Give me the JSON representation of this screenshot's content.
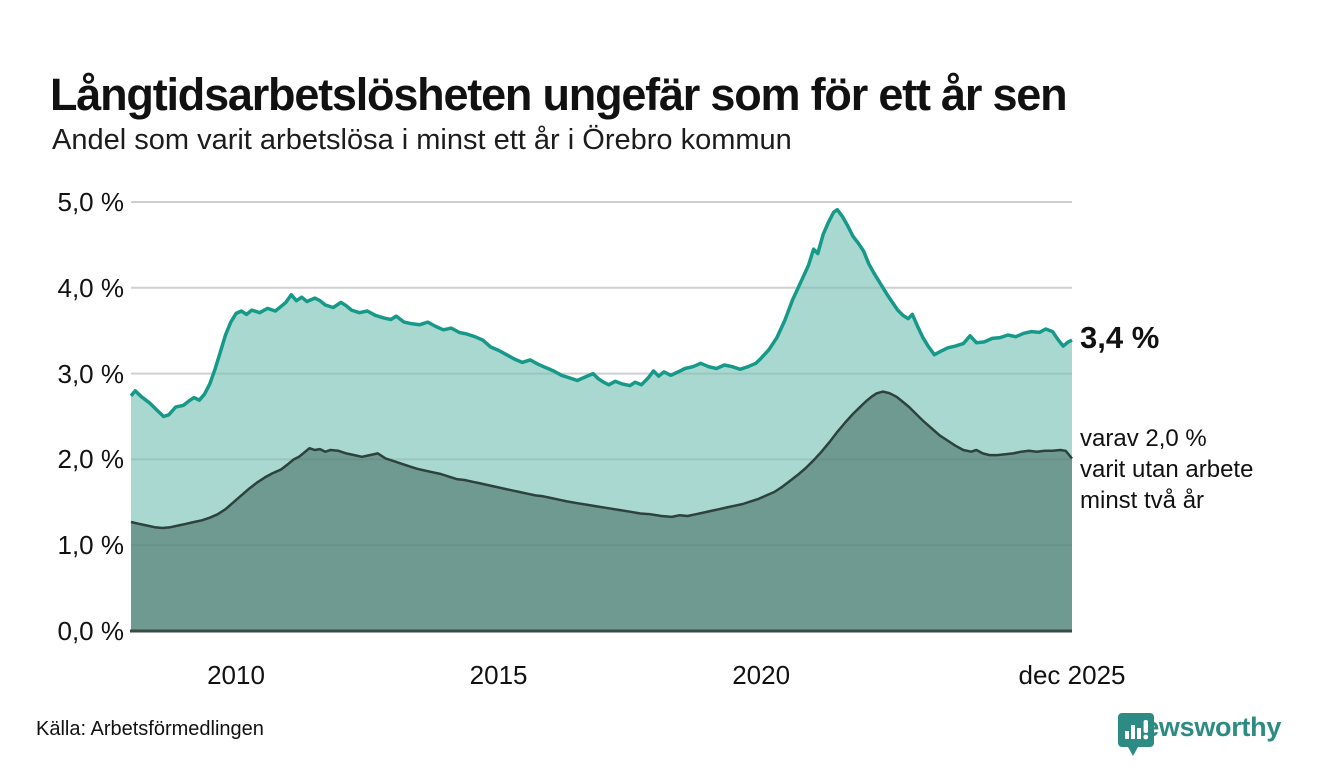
{
  "header": {
    "title": "Långtidsarbetslösheten ungefär som för ett år sen",
    "subtitle": "Andel som varit arbetslösa i minst ett år i Örebro kommun"
  },
  "annotations": {
    "end_value": "3,4 %",
    "secondary_label": "varav 2,0 %\nvarit utan arbete\nminst två år"
  },
  "footer": {
    "source": "Källa: Arbetsförmedlingen",
    "brand": "Newsworthy"
  },
  "colors": {
    "gridline": "#e5e5e8",
    "gridline_overlay": "rgba(70,90,85,0.14)",
    "baseline": "#3a4a45",
    "text": "#111111",
    "brand_teal": "#2e8b84"
  },
  "chart_data": {
    "type": "area",
    "title": "Långtidsarbetslösheten ungefär som för ett år sen",
    "subtitle": "Andel som varit arbetslösa i minst ett år i Örebro kommun",
    "grid": true,
    "legend_position": "right-annotations",
    "x_axis": {
      "lim": [
        2008.0,
        2025.92
      ],
      "ticks": [
        {
          "label": "2010",
          "x": 2010
        },
        {
          "label": "2015",
          "x": 2015
        },
        {
          "label": "2020",
          "x": 2020
        },
        {
          "label": "dec 2025",
          "x": 2025.92
        }
      ]
    },
    "y_axis": {
      "lim": [
        0,
        5
      ],
      "unit": "%",
      "ticks": [
        {
          "label": "0,0 %",
          "v": 0
        },
        {
          "label": "1,0 %",
          "v": 1
        },
        {
          "label": "2,0 %",
          "v": 2
        },
        {
          "label": "3,0 %",
          "v": 3
        },
        {
          "label": "4,0 %",
          "v": 4
        },
        {
          "label": "5,0 %",
          "v": 5
        }
      ]
    },
    "series": [
      {
        "name": "Andel arbetslösa minst ett år",
        "end_label": "3,4 %",
        "end_value": 3.4,
        "color": "#17998a",
        "fill": "#a8d8d0",
        "width": 3.5,
        "points": [
          [
            2008.0,
            2.74
          ],
          [
            2008.08,
            2.8
          ],
          [
            2008.2,
            2.73
          ],
          [
            2008.35,
            2.66
          ],
          [
            2008.5,
            2.57
          ],
          [
            2008.62,
            2.5
          ],
          [
            2008.72,
            2.52
          ],
          [
            2008.85,
            2.61
          ],
          [
            2009.0,
            2.63
          ],
          [
            2009.1,
            2.68
          ],
          [
            2009.2,
            2.72
          ],
          [
            2009.3,
            2.69
          ],
          [
            2009.4,
            2.76
          ],
          [
            2009.5,
            2.88
          ],
          [
            2009.6,
            3.05
          ],
          [
            2009.7,
            3.25
          ],
          [
            2009.8,
            3.45
          ],
          [
            2009.9,
            3.6
          ],
          [
            2010.0,
            3.7
          ],
          [
            2010.1,
            3.73
          ],
          [
            2010.2,
            3.69
          ],
          [
            2010.3,
            3.74
          ],
          [
            2010.45,
            3.71
          ],
          [
            2010.6,
            3.76
          ],
          [
            2010.75,
            3.73
          ],
          [
            2010.85,
            3.78
          ],
          [
            2010.95,
            3.83
          ],
          [
            2011.05,
            3.92
          ],
          [
            2011.15,
            3.85
          ],
          [
            2011.25,
            3.89
          ],
          [
            2011.35,
            3.84
          ],
          [
            2011.5,
            3.88
          ],
          [
            2011.6,
            3.85
          ],
          [
            2011.7,
            3.8
          ],
          [
            2011.85,
            3.77
          ],
          [
            2012.0,
            3.83
          ],
          [
            2012.1,
            3.79
          ],
          [
            2012.2,
            3.74
          ],
          [
            2012.35,
            3.71
          ],
          [
            2012.5,
            3.73
          ],
          [
            2012.65,
            3.68
          ],
          [
            2012.8,
            3.65
          ],
          [
            2012.95,
            3.63
          ],
          [
            2013.05,
            3.67
          ],
          [
            2013.2,
            3.6
          ],
          [
            2013.35,
            3.58
          ],
          [
            2013.5,
            3.57
          ],
          [
            2013.65,
            3.6
          ],
          [
            2013.8,
            3.55
          ],
          [
            2013.95,
            3.51
          ],
          [
            2014.1,
            3.53
          ],
          [
            2014.25,
            3.48
          ],
          [
            2014.4,
            3.46
          ],
          [
            2014.55,
            3.43
          ],
          [
            2014.7,
            3.39
          ],
          [
            2014.85,
            3.31
          ],
          [
            2015.0,
            3.27
          ],
          [
            2015.15,
            3.22
          ],
          [
            2015.3,
            3.17
          ],
          [
            2015.45,
            3.13
          ],
          [
            2015.6,
            3.16
          ],
          [
            2015.75,
            3.11
          ],
          [
            2015.9,
            3.07
          ],
          [
            2016.05,
            3.03
          ],
          [
            2016.2,
            2.98
          ],
          [
            2016.35,
            2.95
          ],
          [
            2016.5,
            2.92
          ],
          [
            2016.65,
            2.96
          ],
          [
            2016.8,
            3.0
          ],
          [
            2016.9,
            2.94
          ],
          [
            2017.0,
            2.9
          ],
          [
            2017.1,
            2.87
          ],
          [
            2017.22,
            2.91
          ],
          [
            2017.35,
            2.88
          ],
          [
            2017.5,
            2.86
          ],
          [
            2017.6,
            2.9
          ],
          [
            2017.72,
            2.87
          ],
          [
            2017.85,
            2.95
          ],
          [
            2017.95,
            3.03
          ],
          [
            2018.05,
            2.97
          ],
          [
            2018.15,
            3.02
          ],
          [
            2018.28,
            2.98
          ],
          [
            2018.42,
            3.02
          ],
          [
            2018.55,
            3.06
          ],
          [
            2018.7,
            3.08
          ],
          [
            2018.85,
            3.12
          ],
          [
            2019.0,
            3.08
          ],
          [
            2019.15,
            3.06
          ],
          [
            2019.3,
            3.1
          ],
          [
            2019.45,
            3.08
          ],
          [
            2019.6,
            3.05
          ],
          [
            2019.75,
            3.08
          ],
          [
            2019.9,
            3.12
          ],
          [
            2020.0,
            3.18
          ],
          [
            2020.15,
            3.28
          ],
          [
            2020.3,
            3.42
          ],
          [
            2020.45,
            3.62
          ],
          [
            2020.6,
            3.86
          ],
          [
            2020.75,
            4.06
          ],
          [
            2020.9,
            4.26
          ],
          [
            2021.0,
            4.45
          ],
          [
            2021.08,
            4.4
          ],
          [
            2021.18,
            4.62
          ],
          [
            2021.28,
            4.76
          ],
          [
            2021.38,
            4.88
          ],
          [
            2021.45,
            4.91
          ],
          [
            2021.55,
            4.83
          ],
          [
            2021.65,
            4.72
          ],
          [
            2021.75,
            4.6
          ],
          [
            2021.85,
            4.52
          ],
          [
            2021.95,
            4.43
          ],
          [
            2022.05,
            4.28
          ],
          [
            2022.15,
            4.17
          ],
          [
            2022.25,
            4.07
          ],
          [
            2022.4,
            3.92
          ],
          [
            2022.5,
            3.83
          ],
          [
            2022.6,
            3.74
          ],
          [
            2022.7,
            3.68
          ],
          [
            2022.8,
            3.64
          ],
          [
            2022.88,
            3.69
          ],
          [
            2022.98,
            3.55
          ],
          [
            2023.08,
            3.42
          ],
          [
            2023.18,
            3.32
          ],
          [
            2023.3,
            3.22
          ],
          [
            2023.42,
            3.26
          ],
          [
            2023.55,
            3.3
          ],
          [
            2023.7,
            3.32
          ],
          [
            2023.85,
            3.35
          ],
          [
            2023.98,
            3.44
          ],
          [
            2024.1,
            3.36
          ],
          [
            2024.25,
            3.37
          ],
          [
            2024.4,
            3.41
          ],
          [
            2024.55,
            3.42
          ],
          [
            2024.7,
            3.45
          ],
          [
            2024.85,
            3.43
          ],
          [
            2025.0,
            3.47
          ],
          [
            2025.15,
            3.49
          ],
          [
            2025.3,
            3.48
          ],
          [
            2025.42,
            3.52
          ],
          [
            2025.55,
            3.49
          ],
          [
            2025.65,
            3.4
          ],
          [
            2025.75,
            3.32
          ],
          [
            2025.85,
            3.37
          ],
          [
            2025.92,
            3.39
          ]
        ]
      },
      {
        "name": "varav utan arbete minst två år",
        "end_label": "varav 2,0 % varit utan arbete minst två år",
        "end_value": 2.0,
        "color": "#2e423d",
        "fill": "#6f9a92",
        "width": 2.5,
        "points": [
          [
            2008.0,
            1.27
          ],
          [
            2008.15,
            1.25
          ],
          [
            2008.3,
            1.23
          ],
          [
            2008.45,
            1.21
          ],
          [
            2008.6,
            1.2
          ],
          [
            2008.75,
            1.21
          ],
          [
            2008.9,
            1.23
          ],
          [
            2009.05,
            1.25
          ],
          [
            2009.2,
            1.27
          ],
          [
            2009.35,
            1.29
          ],
          [
            2009.5,
            1.32
          ],
          [
            2009.65,
            1.36
          ],
          [
            2009.8,
            1.42
          ],
          [
            2009.95,
            1.5
          ],
          [
            2010.1,
            1.58
          ],
          [
            2010.25,
            1.66
          ],
          [
            2010.4,
            1.73
          ],
          [
            2010.55,
            1.79
          ],
          [
            2010.7,
            1.84
          ],
          [
            2010.85,
            1.88
          ],
          [
            2011.0,
            1.95
          ],
          [
            2011.1,
            2.0
          ],
          [
            2011.2,
            2.03
          ],
          [
            2011.3,
            2.08
          ],
          [
            2011.4,
            2.13
          ],
          [
            2011.5,
            2.11
          ],
          [
            2011.6,
            2.12
          ],
          [
            2011.7,
            2.09
          ],
          [
            2011.8,
            2.11
          ],
          [
            2011.95,
            2.1
          ],
          [
            2012.1,
            2.07
          ],
          [
            2012.25,
            2.05
          ],
          [
            2012.4,
            2.03
          ],
          [
            2012.55,
            2.05
          ],
          [
            2012.7,
            2.07
          ],
          [
            2012.85,
            2.01
          ],
          [
            2013.0,
            1.98
          ],
          [
            2013.15,
            1.95
          ],
          [
            2013.3,
            1.92
          ],
          [
            2013.45,
            1.89
          ],
          [
            2013.6,
            1.87
          ],
          [
            2013.75,
            1.85
          ],
          [
            2013.9,
            1.83
          ],
          [
            2014.05,
            1.8
          ],
          [
            2014.2,
            1.77
          ],
          [
            2014.35,
            1.76
          ],
          [
            2014.5,
            1.74
          ],
          [
            2014.65,
            1.72
          ],
          [
            2014.8,
            1.7
          ],
          [
            2014.95,
            1.68
          ],
          [
            2015.1,
            1.66
          ],
          [
            2015.25,
            1.64
          ],
          [
            2015.4,
            1.62
          ],
          [
            2015.55,
            1.6
          ],
          [
            2015.7,
            1.58
          ],
          [
            2015.85,
            1.57
          ],
          [
            2016.0,
            1.55
          ],
          [
            2016.15,
            1.53
          ],
          [
            2016.3,
            1.51
          ],
          [
            2016.5,
            1.49
          ],
          [
            2016.7,
            1.47
          ],
          [
            2016.9,
            1.45
          ],
          [
            2017.1,
            1.43
          ],
          [
            2017.3,
            1.41
          ],
          [
            2017.5,
            1.39
          ],
          [
            2017.7,
            1.37
          ],
          [
            2017.9,
            1.36
          ],
          [
            2018.1,
            1.34
          ],
          [
            2018.3,
            1.33
          ],
          [
            2018.45,
            1.35
          ],
          [
            2018.6,
            1.34
          ],
          [
            2018.75,
            1.36
          ],
          [
            2018.9,
            1.38
          ],
          [
            2019.05,
            1.4
          ],
          [
            2019.2,
            1.42
          ],
          [
            2019.35,
            1.44
          ],
          [
            2019.5,
            1.46
          ],
          [
            2019.65,
            1.48
          ],
          [
            2019.8,
            1.51
          ],
          [
            2019.95,
            1.54
          ],
          [
            2020.1,
            1.58
          ],
          [
            2020.25,
            1.62
          ],
          [
            2020.4,
            1.68
          ],
          [
            2020.55,
            1.75
          ],
          [
            2020.7,
            1.82
          ],
          [
            2020.85,
            1.9
          ],
          [
            2021.0,
            1.99
          ],
          [
            2021.15,
            2.09
          ],
          [
            2021.3,
            2.2
          ],
          [
            2021.45,
            2.32
          ],
          [
            2021.6,
            2.43
          ],
          [
            2021.75,
            2.53
          ],
          [
            2021.9,
            2.62
          ],
          [
            2022.0,
            2.68
          ],
          [
            2022.1,
            2.73
          ],
          [
            2022.2,
            2.77
          ],
          [
            2022.32,
            2.79
          ],
          [
            2022.45,
            2.77
          ],
          [
            2022.58,
            2.73
          ],
          [
            2022.7,
            2.67
          ],
          [
            2022.82,
            2.61
          ],
          [
            2022.95,
            2.53
          ],
          [
            2023.1,
            2.44
          ],
          [
            2023.25,
            2.36
          ],
          [
            2023.4,
            2.28
          ],
          [
            2023.55,
            2.22
          ],
          [
            2023.7,
            2.16
          ],
          [
            2023.85,
            2.11
          ],
          [
            2024.0,
            2.09
          ],
          [
            2024.1,
            2.11
          ],
          [
            2024.22,
            2.07
          ],
          [
            2024.35,
            2.05
          ],
          [
            2024.5,
            2.05
          ],
          [
            2024.65,
            2.06
          ],
          [
            2024.8,
            2.07
          ],
          [
            2024.95,
            2.09
          ],
          [
            2025.1,
            2.1
          ],
          [
            2025.25,
            2.09
          ],
          [
            2025.4,
            2.1
          ],
          [
            2025.55,
            2.1
          ],
          [
            2025.7,
            2.11
          ],
          [
            2025.8,
            2.1
          ],
          [
            2025.92,
            2.01
          ]
        ]
      }
    ]
  }
}
